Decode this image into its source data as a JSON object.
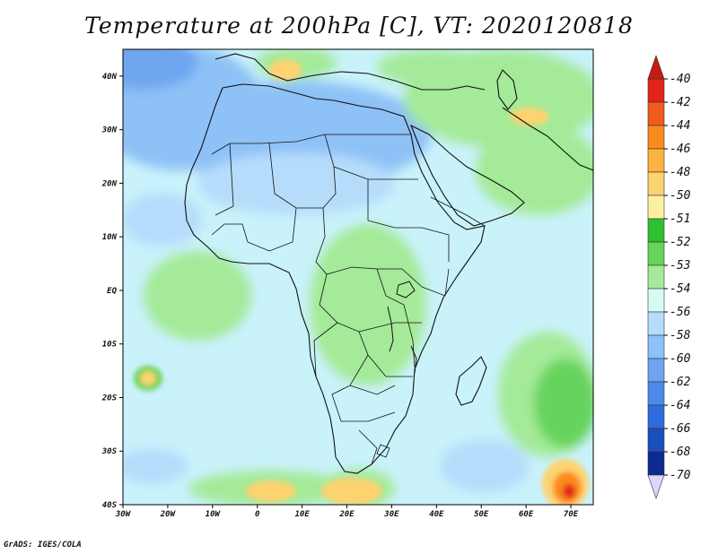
{
  "title": "Temperature at 200hPa [C], VT: 2020120818",
  "footer": "GrADS: IGES/COLA",
  "map": {
    "lat_labels": [
      "40N",
      "30N",
      "20N",
      "10N",
      "EQ",
      "10S",
      "20S",
      "30S",
      "40S"
    ],
    "lon_labels": [
      "30W",
      "20W",
      "10W",
      "0",
      "10E",
      "20E",
      "30E",
      "40E",
      "50E",
      "60E",
      "70E"
    ],
    "lon_range": [
      -30,
      75
    ],
    "lat_range": [
      -40,
      45
    ],
    "background_color": "#c9f2fb"
  },
  "colorbar": {
    "labels": [
      "-40",
      "-42",
      "-44",
      "-46",
      "-48",
      "-50",
      "-51",
      "-52",
      "-53",
      "-54",
      "-56",
      "-58",
      "-60",
      "-62",
      "-64",
      "-66",
      "-68",
      "-70"
    ],
    "colors": [
      "#e2231c",
      "#f05a1e",
      "#fb8a1b",
      "#fcb341",
      "#fdd370",
      "#fdf0a4",
      "#2fc02f",
      "#66d35b",
      "#a4ea98",
      "#d6fbf5",
      "#b5ddfb",
      "#8ec1f6",
      "#6ea5ef",
      "#4c8aea",
      "#2c6ddb",
      "#1b4fbd",
      "#0c2a92"
    ],
    "top_cap_color": "#c41b14",
    "bottom_cap_color": "#dcd6fb"
  },
  "field_colors": {
    "very_cold": "#8ec1f6",
    "cold": "#b5ddfb",
    "cool_blue": "#6ea5ef",
    "cool": "#d6fbf5",
    "light_green": "#a4ea98",
    "green": "#66d35b",
    "dark_green": "#2fc02f",
    "yellow": "#fdd370",
    "orange": "#fb8a1b",
    "red": "#e2231c"
  }
}
